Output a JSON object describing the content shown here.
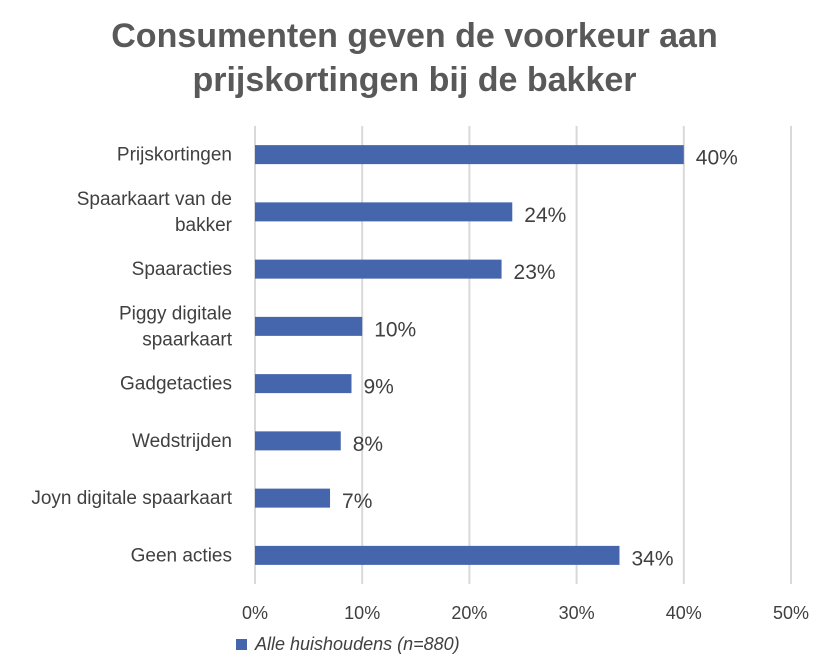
{
  "chart_data": {
    "type": "bar",
    "orientation": "horizontal",
    "title_lines": [
      "Consumenten geven de voorkeur aan",
      "prijskortingen bij de bakker"
    ],
    "categories": [
      [
        "Prijskortingen"
      ],
      [
        "Spaarkaart van de",
        "bakker"
      ],
      [
        "Spaaracties"
      ],
      [
        "Piggy digitale",
        "spaarkaart"
      ],
      [
        "Gadgetacties"
      ],
      [
        "Wedstrijden"
      ],
      [
        "Joyn digitale spaarkaart"
      ],
      [
        "Geen acties"
      ]
    ],
    "series": [
      {
        "name": "Alle huishoudens (n=880)",
        "values": [
          40,
          24,
          23,
          10,
          9,
          8,
          7,
          34
        ],
        "labels": [
          "40%",
          "24%",
          "23%",
          "10%",
          "9%",
          "8%",
          "7%",
          "34%"
        ]
      }
    ],
    "xlim": [
      0,
      50
    ],
    "xticks": [
      "0%",
      "10%",
      "20%",
      "30%",
      "40%",
      "50%"
    ],
    "grid": true,
    "legend_position": "bottom-left",
    "bar_color": "#4565ad",
    "grid_color": "#d9d9d9"
  }
}
